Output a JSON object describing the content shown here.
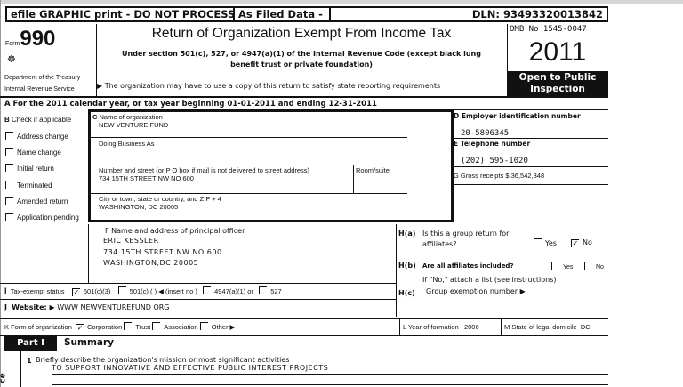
{
  "header": {
    "efile": "efile GRAPHIC print - DO NOT PROCESS",
    "filed": "As Filed Data -",
    "dln": "DLN: 93493320013842"
  },
  "form": {
    "form_word": "Form",
    "number": "990",
    "dept1": "Department of the Treasury",
    "dept2": "Internal Revenue Service",
    "title": "Return of Organization Exempt From Income Tax",
    "subtitle": "Under section 501(c), 527, or 4947(a)(1) of the Internal Revenue Code (except black lung benefit trust or private foundation)",
    "note": "▶ The organization may have to use a copy of this return to satisfy state reporting requirements",
    "omb": "OMB No 1545-0047",
    "year": "2011",
    "open": "Open to Public Inspection"
  },
  "line_a": "A  For the 2011   calendar year, or tax year beginning 01-01-2011     and ending 12-31-2011",
  "b": {
    "label": "Check if applicable",
    "letter": "B",
    "items": [
      "Address change",
      "Name change",
      "Initial return",
      "Terminated",
      "Amended return",
      "Application pending"
    ]
  },
  "c": {
    "name_label": "Name of organization",
    "name": "NEW VENTURE FUND",
    "dba_label": "Doing Business As",
    "street_label": "Number and street (or P O  box if mail is not delivered to street address)",
    "room_label": "Room/suite",
    "street": "734 15TH STREET NW NO 600",
    "city_label": "City or town, state or country, and ZIP + 4",
    "city": "WASHINGTON, DC  20005"
  },
  "d": {
    "label": "D Employer identification number",
    "ein": "20-5806345",
    "e_label": "E Telephone number",
    "phone": "(202) 595-1020",
    "g_label": "G Gross receipts $ 36,542,348"
  },
  "f": {
    "label": "F   Name and address of principal officer",
    "name": "ERIC KESSLER",
    "street": "734 15TH STREET NW NO 600",
    "city": "WASHINGTON,DC  20005"
  },
  "h": {
    "a_label": "H(a)",
    "a_q1": "Is this a group return for",
    "a_q2": "affiliates?",
    "yes": "Yes",
    "no": "No",
    "a_answer": "No",
    "b_label": "H(b)",
    "b_q": "Are all affiliates included?",
    "b_note": "If \"No,\" attach a list  (see instructions)",
    "c_label": "H(c)",
    "c_q": "Group exemption number ▶"
  },
  "i": {
    "letter": "I",
    "label": "Tax-exempt status",
    "opts": [
      "501(c)(3)",
      "501(c) (   ) ◀ (insert no )",
      "4947(a)(1) or",
      "527"
    ],
    "checked": "501(c)(3)"
  },
  "j": {
    "letter": "J",
    "label": "Website: ▶",
    "value": "WWW NEWVENTUREFUND ORG"
  },
  "k": {
    "label": "K Form of organization",
    "opts": [
      "Corporation",
      "Trust",
      "Association",
      "Other ▶"
    ],
    "checked": "Corporation"
  },
  "l": {
    "label": "L Year of formation",
    "value": "2006"
  },
  "m": {
    "label": "M State of legal domicile",
    "value": "DC"
  },
  "part1": {
    "tag": "Part I",
    "title": "Summary",
    "line1_num": "1",
    "line1_label": "Briefly describe the organization's mission or most significant activities",
    "line1_value": "TO SUPPORT INNOVATIVE AND EFFECTIVE PUBLIC INTEREST PROJECTS",
    "side": "ce"
  },
  "check": "✓"
}
